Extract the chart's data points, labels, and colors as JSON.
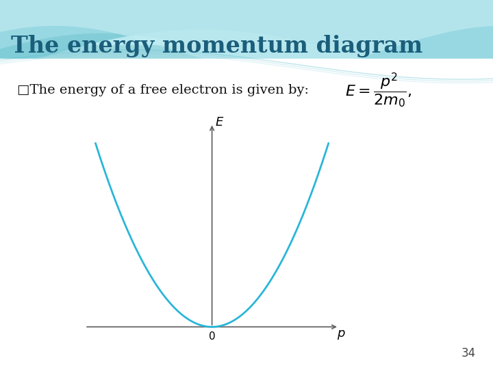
{
  "title": "The energy momentum diagram",
  "title_color": "#1b5e7b",
  "title_fontsize": 24,
  "subtitle_text": "□The energy of a free electron is given by:",
  "subtitle_fontsize": 14,
  "subtitle_color": "#111111",
  "formula": "$E = \\dfrac{p^2}{2m_0},$",
  "formula_fontsize": 16,
  "curve_color": "#29b6d8",
  "curve_linewidth": 2.0,
  "axis_color": "#666666",
  "label_E": "$E$",
  "label_p": "$p$",
  "label_0": "$0$",
  "p_range": [
    -2.2,
    2.2
  ],
  "E_range": [
    -0.1,
    4.0
  ],
  "page_number": "34",
  "wave_color1": "#8ed8e2",
  "wave_color2": "#a8e6ee",
  "wave_color3": "#c5f0f5",
  "wave_color4": "#ddf5f8"
}
